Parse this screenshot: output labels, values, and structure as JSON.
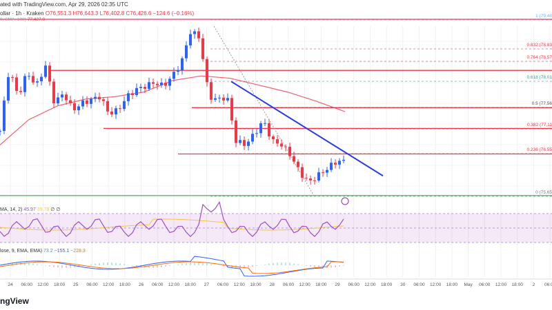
{
  "header": {
    "published": "ated with TradingView.com, Apr 29, 2026 02:35 UTC",
    "symbol": "ollar · 1h · Kraken",
    "open": "O76,551.3",
    "high": "H76,643.3",
    "low": "L76,402.8",
    "close": "C76,426.6",
    "change": "−124.6 (−0.16%)",
    "ma_label": "0, SMA, 100)",
    "ma_value": "77,427.0"
  },
  "rsi": {
    "label": "MA, 14, 2)",
    "value": "45.97",
    "ma_value": "39.78",
    "extra": "∅ ∅"
  },
  "macd": {
    "label": "lose, 9, EMA, EMA)",
    "hist": "73.2",
    "macd": "−155.1",
    "signal": "−228.3"
  },
  "footer": {
    "logo": "ngView"
  },
  "colors": {
    "up": "#089981",
    "down": "#f23645",
    "candle_up": "#2962ff",
    "candle_down": "#f23645",
    "sma": "#f23645",
    "trend": "#2a3ce8",
    "level": "#f23645",
    "support": "#4caf50",
    "rsi": "#9c4fc4",
    "rsi_ma": "#f5c542",
    "macd": "#2962ff",
    "signal": "#ff6d00"
  },
  "chart_data": {
    "type": "candlestick",
    "x_ticks": [
      "24",
      "06:00",
      "12:00",
      "18:00",
      "25",
      "06:00",
      "12:00",
      "18:00",
      "26",
      "06:00",
      "12:00",
      "18:00",
      "27",
      "06:00",
      "12:00",
      "18:00",
      "28",
      "06:00",
      "12:00",
      "18:00",
      "29",
      "06:00",
      "12:00",
      "18:00",
      "30",
      "06:00",
      "12:00",
      "18:00",
      "May",
      "06:00",
      "12:00",
      "18:00",
      "2",
      "06:00"
    ],
    "closes": [
      77056,
      78403,
      77804,
      78328,
      78029,
      78478,
      77655,
      77879,
      77505,
      77655,
      77730,
      77804,
      77430,
      77505,
      77804,
      77954,
      78029,
      78104,
      78029,
      78253,
      78552,
      79226,
      79076,
      77804,
      77730,
      77804,
      76832,
      76757,
      76982,
      77281,
      76832,
      76757,
      76533,
      76159,
      75934,
      76084,
      76234,
      76383,
      76427
    ],
    "sma_100": [
      76750,
      77300,
      77600,
      77750,
      77800,
      77900,
      78150,
      78250,
      78200,
      78050,
      77900,
      77700,
      77475
    ],
    "horizontal_levels": [
      79480,
      78370,
      77560,
      77110,
      76555,
      75652
    ],
    "trend_line": {
      "from": 78130,
      "to": 76080
    },
    "fib_levels": [
      {
        "ratio": "1",
        "label": "1 (79,48",
        "color": "#64b5f6"
      },
      {
        "ratio": "0.832",
        "label": "0.832 (78,83",
        "color": "#f23645"
      },
      {
        "ratio": "0.764",
        "label": "0.764 (78,57",
        "color": "#f23645"
      },
      {
        "ratio": "0.618",
        "label": "0.618 (78,01",
        "color": "#26a69a"
      },
      {
        "ratio": "0.5",
        "label": "0.5 (77,56",
        "color": "#555555"
      },
      {
        "ratio": "0.382",
        "label": "0.382 (77,11",
        "color": "#f23645"
      },
      {
        "ratio": "0.236",
        "label": "0.236 (76,55",
        "color": "#f23645"
      },
      {
        "ratio": "0",
        "label": "0 (75,65",
        "color": "#787b86"
      }
    ],
    "price_range": [
      75650,
      79480
    ]
  }
}
